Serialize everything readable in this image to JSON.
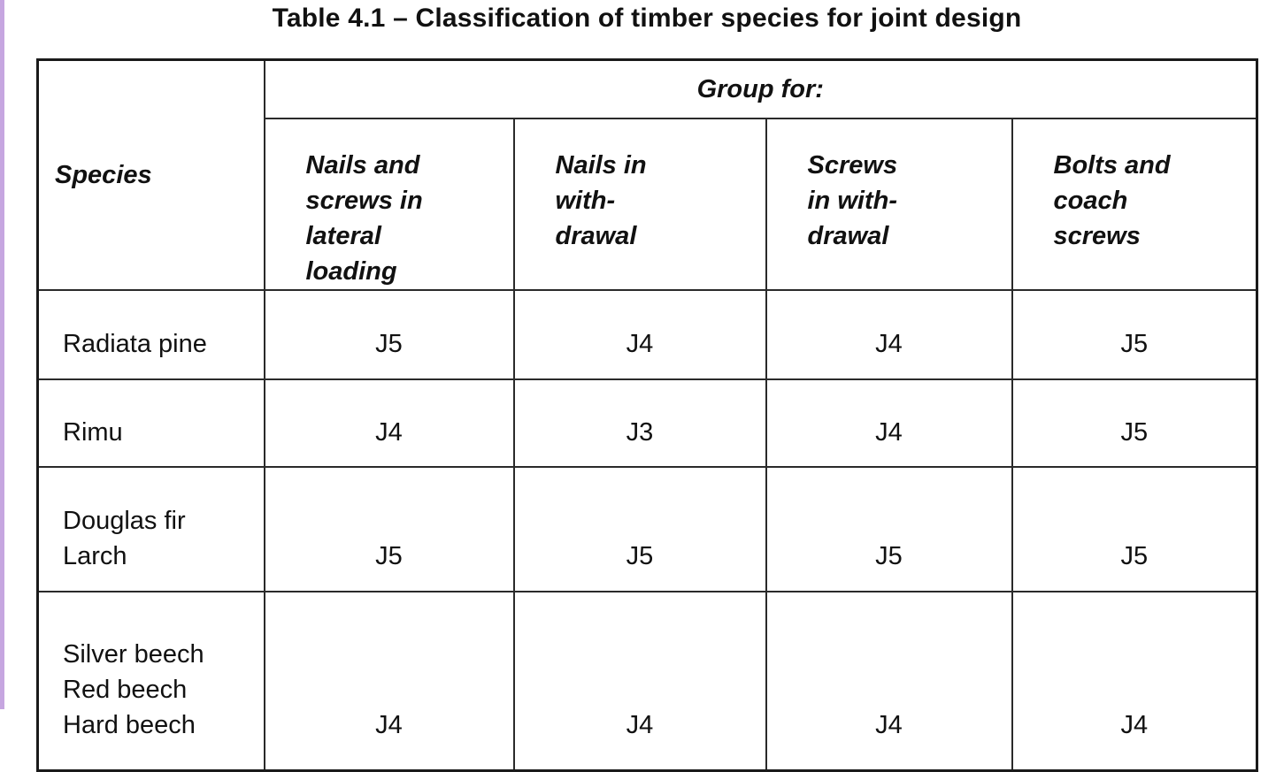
{
  "caption": "Table 4.1 – Classification of timber species for joint design",
  "table": {
    "species_header": "Species",
    "group_header": "Group for:",
    "columns": [
      [
        "Nails and",
        "screws in",
        "lateral",
        "loading"
      ],
      [
        "Nails in",
        "with-",
        "drawal"
      ],
      [
        "Screws",
        "in with-",
        "drawal"
      ],
      [
        "Bolts and",
        "coach",
        "screws"
      ]
    ],
    "rows": [
      {
        "species": [
          "Radiata pine"
        ],
        "values": [
          "J5",
          "J4",
          "J4",
          "J5"
        ]
      },
      {
        "species": [
          "Rimu"
        ],
        "values": [
          "J4",
          "J3",
          "J4",
          "J5"
        ]
      },
      {
        "species": [
          "Douglas fir",
          "Larch"
        ],
        "values": [
          "J5",
          "J5",
          "J5",
          "J5"
        ]
      },
      {
        "species": [
          "Silver beech",
          "Red beech",
          "Hard beech"
        ],
        "values": [
          "J4",
          "J4",
          "J4",
          "J4"
        ]
      }
    ]
  }
}
